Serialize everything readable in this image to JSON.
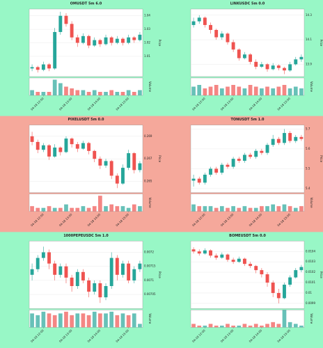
{
  "chart_data": [
    {
      "type": "candlestick",
      "title": "OMUSDT 5m 6.0",
      "background": "#98f7c6",
      "up_color": "#26a69a",
      "down_color": "#ef5350",
      "ylabel": "Price",
      "volume_label": "Volume",
      "categories": [
        null,
        null,
        "04-18 12:00",
        null,
        null,
        null,
        null,
        "04-18 13:00",
        null,
        null,
        null,
        null,
        "04-18 14:00",
        null,
        null,
        null,
        null,
        "04-18 15:00",
        null,
        null
      ],
      "ohlc": [
        [
          1.001,
          1.004,
          0.999,
          1.002
        ],
        [
          1.002,
          1.003,
          0.998,
          1.0
        ],
        [
          1.0,
          1.006,
          0.999,
          1.004
        ],
        [
          1.004,
          1.005,
          0.999,
          1.001
        ],
        [
          1.001,
          1.031,
          1.0,
          1.028
        ],
        [
          1.028,
          1.043,
          1.026,
          1.04
        ],
        [
          1.04,
          1.042,
          1.032,
          1.034
        ],
        [
          1.034,
          1.036,
          1.022,
          1.024
        ],
        [
          1.024,
          1.026,
          1.017,
          1.02
        ],
        [
          1.02,
          1.027,
          1.019,
          1.025
        ],
        [
          1.025,
          1.026,
          1.016,
          1.018
        ],
        [
          1.018,
          1.024,
          1.017,
          1.022
        ],
        [
          1.022,
          1.023,
          1.017,
          1.019
        ],
        [
          1.019,
          1.026,
          1.018,
          1.024
        ],
        [
          1.024,
          1.025,
          1.018,
          1.02
        ],
        [
          1.02,
          1.025,
          1.019,
          1.023
        ],
        [
          1.023,
          1.024,
          1.018,
          1.02
        ],
        [
          1.02,
          1.026,
          1.019,
          1.024
        ],
        [
          1.024,
          1.025,
          1.02,
          1.022
        ],
        [
          1.022,
          1.028,
          1.021,
          1.026
        ]
      ],
      "volume": [
        3,
        2,
        2,
        2,
        9,
        7,
        5,
        4,
        3,
        3,
        2,
        3,
        2,
        2,
        3,
        2,
        2,
        3,
        2,
        3
      ],
      "volume_ylim": [
        0,
        10
      ],
      "ylim": [
        0.995,
        1.045
      ],
      "yticks": [
        1.01,
        1.02,
        1.03,
        1.04
      ]
    },
    {
      "type": "candlestick",
      "title": "LINKUSDC 5m 0.0",
      "background": "#98f7c6",
      "up_color": "#26a69a",
      "down_color": "#ef5350",
      "ylabel": "Price",
      "volume_label": "Volume",
      "categories": [
        null,
        null,
        "04-18 12:00",
        null,
        null,
        null,
        null,
        "04-18 13:00",
        null,
        null,
        null,
        null,
        "04-18 14:00",
        null,
        null,
        null,
        null,
        "04-18 15:00",
        null,
        null
      ],
      "ohlc": [
        [
          14.22,
          14.28,
          14.2,
          14.25
        ],
        [
          14.25,
          14.3,
          14.23,
          14.28
        ],
        [
          14.28,
          14.29,
          14.2,
          14.22
        ],
        [
          14.22,
          14.24,
          14.15,
          14.18
        ],
        [
          14.18,
          14.19,
          14.1,
          14.12
        ],
        [
          14.12,
          14.17,
          14.1,
          14.15
        ],
        [
          14.15,
          14.16,
          14.06,
          14.08
        ],
        [
          14.08,
          14.1,
          14.0,
          14.02
        ],
        [
          14.02,
          14.03,
          13.93,
          13.95
        ],
        [
          13.95,
          14.0,
          13.94,
          13.98
        ],
        [
          13.98,
          13.99,
          13.9,
          13.92
        ],
        [
          13.92,
          13.94,
          13.86,
          13.88
        ],
        [
          13.88,
          13.92,
          13.87,
          13.9
        ],
        [
          13.9,
          13.91,
          13.84,
          13.86
        ],
        [
          13.86,
          13.91,
          13.85,
          13.89
        ],
        [
          13.89,
          13.9,
          13.85,
          13.87
        ],
        [
          13.87,
          13.88,
          13.82,
          13.85
        ],
        [
          13.85,
          13.92,
          13.84,
          13.9
        ],
        [
          13.9,
          13.96,
          13.89,
          13.94
        ],
        [
          13.94,
          13.98,
          13.92,
          13.96
        ]
      ],
      "volume": [
        5,
        6,
        4,
        5,
        6,
        4,
        5,
        6,
        5,
        4,
        6,
        5,
        4,
        5,
        4,
        5,
        6,
        4,
        5,
        4
      ],
      "volume_ylim": [
        0,
        10
      ],
      "ylim": [
        13.8,
        14.35
      ],
      "yticks": [
        13.9,
        14.1,
        14.3
      ]
    },
    {
      "type": "candlestick",
      "title": "PIXELUSDT 5m 0.0",
      "background": "#f5a89b",
      "up_color": "#26a69a",
      "down_color": "#ef5350",
      "ylabel": "Price",
      "volume_label": "Volume",
      "categories": [
        null,
        null,
        "04-18 12:00",
        null,
        null,
        null,
        null,
        "04-18 13:00",
        null,
        null,
        null,
        null,
        "04-18 14:00",
        null,
        null,
        null,
        null,
        "04-18 15:00",
        null,
        null
      ],
      "ohlc": [
        [
          0.269,
          0.2694,
          0.2682,
          0.2685
        ],
        [
          0.2685,
          0.2687,
          0.2675,
          0.2678
        ],
        [
          0.2678,
          0.2684,
          0.2676,
          0.2682
        ],
        [
          0.2682,
          0.2683,
          0.2669,
          0.2672
        ],
        [
          0.2672,
          0.2683,
          0.2671,
          0.268
        ],
        [
          0.268,
          0.2681,
          0.2673,
          0.2676
        ],
        [
          0.2676,
          0.269,
          0.2675,
          0.2688
        ],
        [
          0.2688,
          0.2689,
          0.268,
          0.2683
        ],
        [
          0.2683,
          0.2685,
          0.2676,
          0.2679
        ],
        [
          0.2679,
          0.2686,
          0.2678,
          0.2684
        ],
        [
          0.2684,
          0.2685,
          0.2674,
          0.2677
        ],
        [
          0.2677,
          0.2678,
          0.2667,
          0.267
        ],
        [
          0.267,
          0.2672,
          0.2661,
          0.2664
        ],
        [
          0.2664,
          0.267,
          0.2662,
          0.2668
        ],
        [
          0.2668,
          0.2669,
          0.2652,
          0.2655
        ],
        [
          0.2655,
          0.2657,
          0.2644,
          0.2648
        ],
        [
          0.2648,
          0.2665,
          0.2647,
          0.2662
        ],
        [
          0.2662,
          0.2678,
          0.266,
          0.2675
        ],
        [
          0.2675,
          0.2676,
          0.2657,
          0.266
        ],
        [
          0.266,
          0.2668,
          0.2658,
          0.2666
        ]
      ],
      "volume": [
        3,
        2,
        2,
        3,
        2,
        2,
        4,
        2,
        2,
        3,
        2,
        3,
        9,
        3,
        4,
        3,
        3,
        2,
        4,
        3
      ],
      "volume_ylim": [
        0,
        10
      ],
      "ylim": [
        0.264,
        0.27
      ],
      "yticks": [
        0.265,
        0.267,
        0.269
      ]
    },
    {
      "type": "candlestick",
      "title": "TONUSDT 5m 1.0",
      "background": "#f5a89b",
      "up_color": "#26a69a",
      "down_color": "#ef5350",
      "ylabel": "Price",
      "volume_label": "Volume",
      "categories": [
        null,
        null,
        "04-18 12:00",
        null,
        null,
        null,
        null,
        "04-18 13:00",
        null,
        null,
        null,
        null,
        "04-18 14:00",
        null,
        null,
        null,
        null,
        "04-18 15:00",
        null,
        null
      ],
      "ohlc": [
        [
          5.44,
          5.47,
          5.41,
          5.45
        ],
        [
          5.45,
          5.46,
          5.42,
          5.43
        ],
        [
          5.43,
          5.48,
          5.42,
          5.47
        ],
        [
          5.47,
          5.51,
          5.46,
          5.5
        ],
        [
          5.5,
          5.51,
          5.47,
          5.48
        ],
        [
          5.48,
          5.53,
          5.47,
          5.52
        ],
        [
          5.52,
          5.53,
          5.5,
          5.51
        ],
        [
          5.51,
          5.56,
          5.5,
          5.55
        ],
        [
          5.55,
          5.56,
          5.53,
          5.54
        ],
        [
          5.54,
          5.58,
          5.53,
          5.57
        ],
        [
          5.57,
          5.58,
          5.55,
          5.56
        ],
        [
          5.56,
          5.6,
          5.55,
          5.59
        ],
        [
          5.59,
          5.6,
          5.57,
          5.58
        ],
        [
          5.58,
          5.63,
          5.57,
          5.62
        ],
        [
          5.62,
          5.67,
          5.61,
          5.65
        ],
        [
          5.65,
          5.66,
          5.62,
          5.63
        ],
        [
          5.63,
          5.7,
          5.62,
          5.68
        ],
        [
          5.68,
          5.69,
          5.63,
          5.64
        ],
        [
          5.64,
          5.67,
          5.63,
          5.66
        ],
        [
          5.66,
          5.67,
          5.64,
          5.65
        ]
      ],
      "volume": [
        4,
        3,
        3,
        3,
        2,
        3,
        2,
        3,
        2,
        3,
        2,
        2,
        3,
        3,
        4,
        3,
        4,
        3,
        2,
        3
      ],
      "volume_ylim": [
        0,
        10
      ],
      "ylim": [
        5.38,
        5.72
      ],
      "yticks": [
        5.4,
        5.5,
        5.6,
        5.7
      ]
    },
    {
      "type": "candlestick",
      "title": "1000PEPEUSDC 5m 1.0",
      "background": "#98f7c6",
      "up_color": "#26a69a",
      "down_color": "#ef5350",
      "ylabel": "Price",
      "volume_label": "Volume",
      "categories": [
        null,
        null,
        "04-18 12:00",
        null,
        null,
        null,
        null,
        "04-18 13:00",
        null,
        null,
        null,
        null,
        "04-18 14:00",
        null,
        null,
        null,
        null,
        "04-18 15:00",
        null,
        null
      ],
      "ohlc": [
        [
          0.00712,
          0.00716,
          0.0071,
          0.00714
        ],
        [
          0.00714,
          0.00719,
          0.00713,
          0.00718
        ],
        [
          0.00718,
          0.00722,
          0.00717,
          0.0072
        ],
        [
          0.0072,
          0.00721,
          0.00714,
          0.00716
        ],
        [
          0.00716,
          0.00717,
          0.0071,
          0.00712
        ],
        [
          0.00712,
          0.00716,
          0.00711,
          0.00715
        ],
        [
          0.00715,
          0.00716,
          0.00709,
          0.00711
        ],
        [
          0.00711,
          0.00712,
          0.00706,
          0.00708
        ],
        [
          0.00708,
          0.00714,
          0.00707,
          0.00713
        ],
        [
          0.00713,
          0.00714,
          0.00709,
          0.0071
        ],
        [
          0.0071,
          0.00711,
          0.00704,
          0.00706
        ],
        [
          0.00706,
          0.0071,
          0.00705,
          0.00709
        ],
        [
          0.00709,
          0.0071,
          0.00702,
          0.00704
        ],
        [
          0.00704,
          0.00709,
          0.00703,
          0.00708
        ],
        [
          0.00708,
          0.0072,
          0.00707,
          0.00718
        ],
        [
          0.00718,
          0.00719,
          0.0071,
          0.00712
        ],
        [
          0.00712,
          0.00717,
          0.00711,
          0.00716
        ],
        [
          0.00716,
          0.00717,
          0.00709,
          0.0071
        ],
        [
          0.0071,
          0.00715,
          0.00709,
          0.00714
        ],
        [
          0.00714,
          0.00717,
          0.00713,
          0.00716
        ]
      ],
      "volume": [
        8,
        7,
        9,
        8,
        7,
        8,
        9,
        7,
        8,
        8,
        7,
        9,
        8,
        8,
        9,
        7,
        8,
        7,
        8,
        2
      ],
      "volume_ylim": [
        0,
        10
      ],
      "ylim": [
        0.007,
        0.00724
      ],
      "yticks": [
        0.00705,
        0.0071,
        0.00715,
        0.0072
      ]
    },
    {
      "type": "candlestick",
      "title": "BOMEUSDT 5m 0.0",
      "background": "#98f7c6",
      "up_color": "#26a69a",
      "down_color": "#ef5350",
      "ylabel": "Price",
      "volume_label": "Volume",
      "categories": [
        null,
        null,
        "04-18 12:00",
        null,
        null,
        null,
        null,
        "04-18 13:00",
        null,
        null,
        null,
        null,
        "04-18 14:00",
        null,
        null,
        null,
        null,
        "04-18 15:00",
        null,
        null
      ],
      "ohlc": [
        [
          0.01042,
          0.01044,
          0.01038,
          0.0104
        ],
        [
          0.0104,
          0.01042,
          0.01036,
          0.01038
        ],
        [
          0.01038,
          0.01043,
          0.01037,
          0.01041
        ],
        [
          0.01041,
          0.01042,
          0.01034,
          0.01036
        ],
        [
          0.01036,
          0.01038,
          0.01032,
          0.01034
        ],
        [
          0.01034,
          0.01039,
          0.01033,
          0.01037
        ],
        [
          0.01037,
          0.01038,
          0.0103,
          0.01032
        ],
        [
          0.01032,
          0.01034,
          0.01028,
          0.0103
        ],
        [
          0.0103,
          0.01035,
          0.01029,
          0.01033
        ],
        [
          0.01033,
          0.01034,
          0.01026,
          0.01028
        ],
        [
          0.01028,
          0.0103,
          0.01024,
          0.01026
        ],
        [
          0.01026,
          0.01027,
          0.01019,
          0.01022
        ],
        [
          0.01022,
          0.01024,
          0.01015,
          0.01018
        ],
        [
          0.01018,
          0.0102,
          0.01006,
          0.0101
        ],
        [
          0.0101,
          0.01012,
          0.00996,
          0.01
        ],
        [
          0.01,
          0.01004,
          0.0099,
          0.00995
        ],
        [
          0.00995,
          0.0101,
          0.00994,
          0.01008
        ],
        [
          0.01008,
          0.01017,
          0.01006,
          0.01015
        ],
        [
          0.01015,
          0.01024,
          0.01014,
          0.01022
        ],
        [
          0.01022,
          0.01027,
          0.0102,
          0.01025
        ]
      ],
      "volume": [
        2,
        1,
        1,
        2,
        1,
        1,
        2,
        1,
        1,
        2,
        1,
        2,
        1,
        2,
        3,
        2,
        10,
        3,
        2,
        1
      ],
      "volume_ylim": [
        0,
        10
      ],
      "ylim": [
        0.00985,
        0.0105
      ],
      "yticks": [
        0.0099,
        0.01,
        0.0101,
        0.0102,
        0.0103,
        0.0104
      ]
    }
  ]
}
